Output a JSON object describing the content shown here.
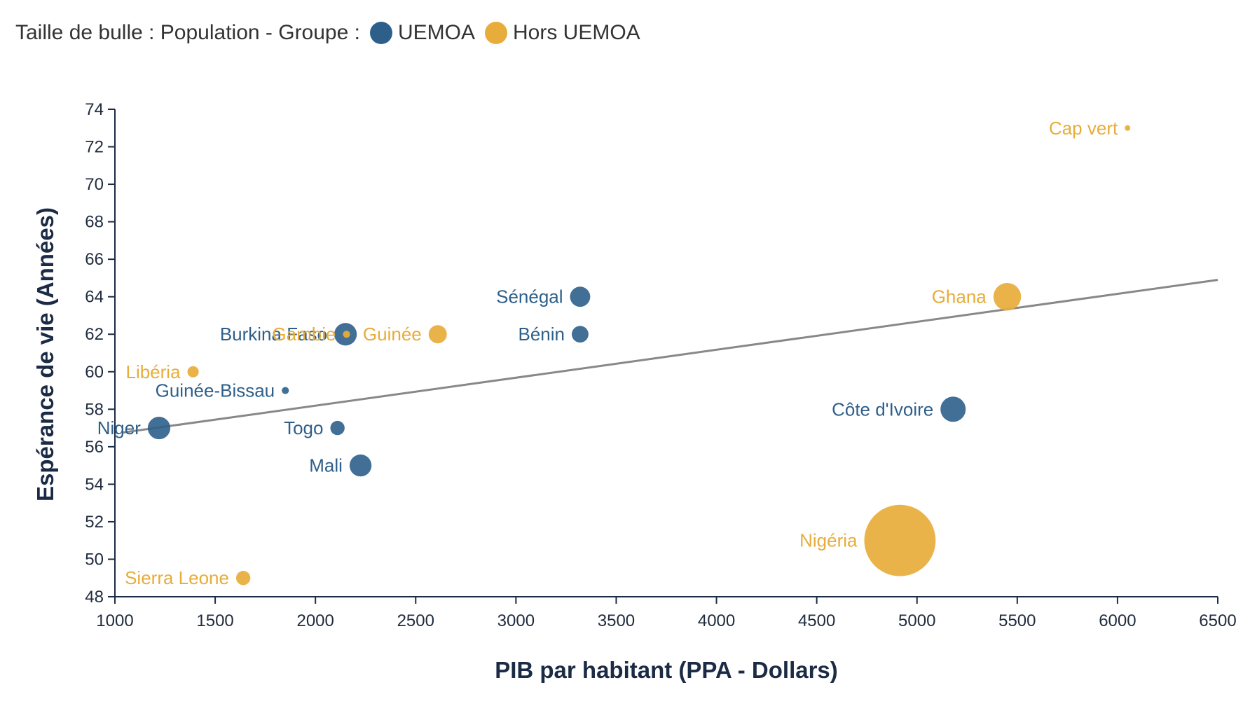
{
  "chart_data": {
    "type": "scatter",
    "title": "",
    "legend": {
      "placement": "top-left",
      "size_note": "Taille de bulle : Population - Groupe :",
      "groups": [
        {
          "name": "UEMOA",
          "color": "#2e5f8a"
        },
        {
          "name": "Hors UEMOA",
          "color": "#e8ac3a"
        }
      ]
    },
    "xlabel": "PIB par habitant (PPA - Dollars)",
    "ylabel": "Espérance de vie (Années)",
    "xlim": [
      1000,
      6500
    ],
    "ylim": [
      48,
      74
    ],
    "xticks": [
      1000,
      1500,
      2000,
      2500,
      3000,
      3500,
      4000,
      4500,
      5000,
      5500,
      6000,
      6500
    ],
    "yticks": [
      48,
      50,
      52,
      54,
      56,
      58,
      60,
      62,
      64,
      66,
      68,
      70,
      72,
      74
    ],
    "grid": false,
    "trendline": {
      "x": [
        1000,
        6500
      ],
      "y": [
        56.7,
        64.9
      ],
      "color": "#888888"
    },
    "points": [
      {
        "name": "Niger",
        "group": "UEMOA",
        "x": 1220,
        "y": 57,
        "population": 20
      },
      {
        "name": "Togo",
        "group": "UEMOA",
        "x": 2110,
        "y": 57,
        "population": 8
      },
      {
        "name": "Mali",
        "group": "UEMOA",
        "x": 2225,
        "y": 55,
        "population": 19
      },
      {
        "name": "Guinée-Bissau",
        "group": "UEMOA",
        "x": 1850,
        "y": 59,
        "population": 2
      },
      {
        "name": "Burkina Faso",
        "group": "UEMOA",
        "x": 2150,
        "y": 62,
        "population": 20
      },
      {
        "name": "Sénégal",
        "group": "UEMOA",
        "x": 3320,
        "y": 64,
        "population": 16
      },
      {
        "name": "Bénin",
        "group": "UEMOA",
        "x": 3320,
        "y": 62,
        "population": 11
      },
      {
        "name": "Côte d'Ivoire",
        "group": "UEMOA",
        "x": 5180,
        "y": 58,
        "population": 25
      },
      {
        "name": "Libéria",
        "group": "Hors UEMOA",
        "x": 1390,
        "y": 60,
        "population": 5
      },
      {
        "name": "Sierra Leone",
        "group": "Hors UEMOA",
        "x": 1640,
        "y": 49,
        "population": 8
      },
      {
        "name": "Gambie",
        "group": "Hors UEMOA",
        "x": 2155,
        "y": 62,
        "population": 2
      },
      {
        "name": "Guinée",
        "group": "Hors UEMOA",
        "x": 2610,
        "y": 62,
        "population": 13
      },
      {
        "name": "Ghana",
        "group": "Hors UEMOA",
        "x": 5450,
        "y": 64,
        "population": 30
      },
      {
        "name": "Nigéria",
        "group": "Hors UEMOA",
        "x": 4915,
        "y": 51,
        "population": 200
      },
      {
        "name": "Cap vert",
        "group": "Hors UEMOA",
        "x": 6050,
        "y": 73,
        "population": 0.5
      }
    ]
  }
}
